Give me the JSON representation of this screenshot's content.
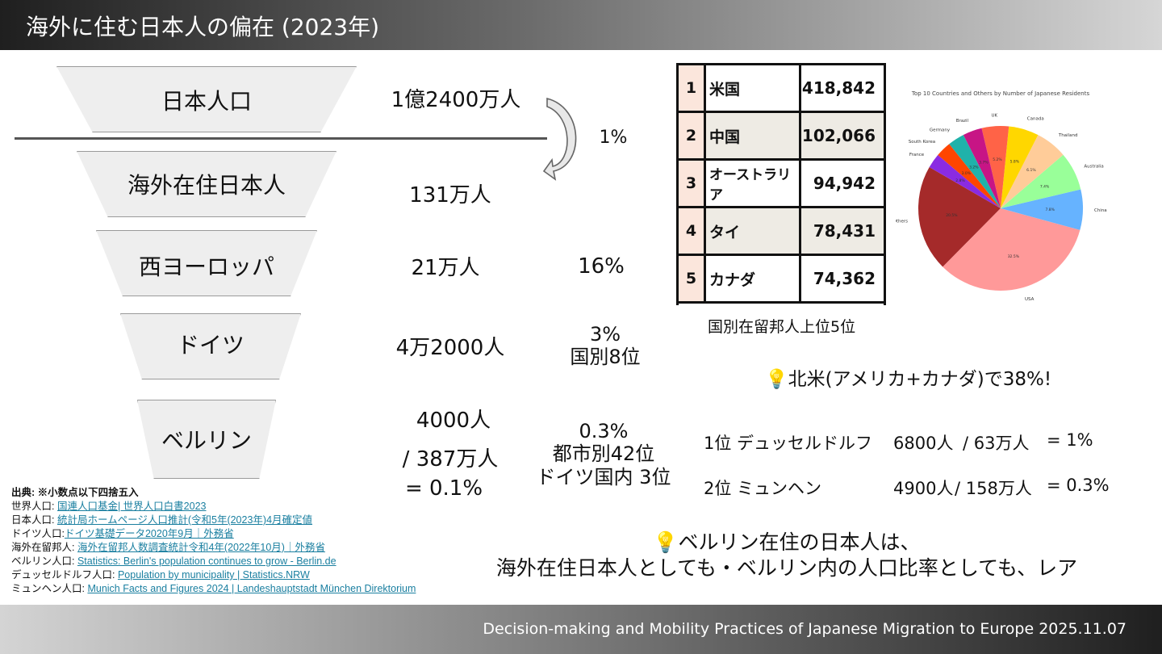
{
  "header": {
    "title": "海外に住む日本人の偏在 (2023年)"
  },
  "funnel": [
    {
      "label": "日本人口",
      "value": "1億2400万人"
    },
    {
      "label": "海外在住日本人",
      "value": "131万人"
    },
    {
      "label": "西ヨーロッパ",
      "value": "21万人"
    },
    {
      "label": "ドイツ",
      "value": "4万2000人"
    },
    {
      "label": "ベルリン",
      "value_lines": [
        "4000人",
        "/ 387万人",
        "= 0.1%"
      ]
    }
  ],
  "ratios": {
    "overseas": "1%",
    "west_europe": "16%",
    "germany_lines": [
      "3%",
      "国別8位"
    ],
    "berlin_lines": [
      "0.3%",
      "都市別42位",
      "ドイツ国内 3位"
    ]
  },
  "ranking": {
    "rows": [
      {
        "rank": "1",
        "country": "米国",
        "count": "418,842"
      },
      {
        "rank": "2",
        "country": "中国",
        "count": "102,066"
      },
      {
        "rank": "3",
        "country": "オーストラリア",
        "count": "94,942"
      },
      {
        "rank": "4",
        "country": "タイ",
        "count": "78,431"
      },
      {
        "rank": "5",
        "country": "カナダ",
        "count": "74,362"
      }
    ],
    "caption": "国別在留邦人上位5位"
  },
  "chart_data": {
    "type": "pie",
    "title": "Top 10 Countries and Others by Number of Japanese Residents",
    "categories": [
      "Others",
      "USA",
      "China",
      "Australia",
      "Thailand",
      "Canada",
      "UK",
      "Brazil",
      "Germany",
      "South Korea",
      "France"
    ],
    "values": [
      20.5,
      32.5,
      7.8,
      7.4,
      6.1,
      5.8,
      5.2,
      3.7,
      3.2,
      3.0,
      2.8
    ],
    "colors": [
      "#a52a2a",
      "#ff9999",
      "#66b3ff",
      "#99ff99",
      "#ffcc99",
      "#ffd700",
      "#ff6347",
      "#c71585",
      "#20b2aa",
      "#ff4500",
      "#8a2be2"
    ]
  },
  "notes": {
    "north_america": "💡北米(アメリカ+カナダ)で38%!",
    "conclusion_line1": "💡ベルリン在住の日本人は、",
    "conclusion_line2": "海外在住日本人としても・ベルリン内の人口比率としても、レア"
  },
  "cities": [
    {
      "rank_name": "1位 デュッセルドルフ",
      "count": "6800人",
      "pop": "/ 63万人",
      "ratio": "= 1%"
    },
    {
      "rank_name": "2位 ミュンヘン",
      "count": "4900人",
      "pop": "/ 158万人",
      "ratio": "= 0.3%"
    }
  ],
  "sources": {
    "heading": "出典: ※小数点以下四捨五入",
    "items": [
      {
        "label": "世界人口: ",
        "link": "国連人口基金| 世界人口白書2023"
      },
      {
        "label": "日本人口: ",
        "link": "統計局ホームページ人口推計(令和5年(2023年)4月確定値"
      },
      {
        "label": "ドイツ人口:",
        "link": "ドイツ基礎データ2020年9月｜外務省"
      },
      {
        "label": "海外在留邦人: ",
        "link": "海外在留邦人数調査統計令和4年(2022年10月)｜外務省"
      },
      {
        "label": "ベルリン人口: ",
        "link": "Statistics: Berlin's population continues to grow - Berlin.de"
      },
      {
        "label": "デュッセルドルフ人口: ",
        "link": "Population by municipality | Statistics.NRW"
      },
      {
        "label": "ミュンヘン人口: ",
        "link": "Munich Facts and Figures 2024 | Landeshauptstadt München Direktorium"
      }
    ]
  },
  "footer": {
    "text": "Decision-making and Mobility Practices of Japanese Migration to Europe 2025.11.07"
  }
}
